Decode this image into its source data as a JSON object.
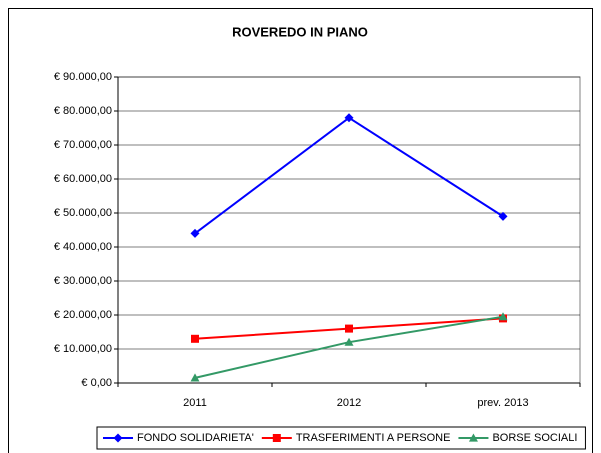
{
  "chart_data": {
    "type": "line",
    "title": "ROVEREDO IN PIANO",
    "categories": [
      "2011",
      "2012",
      "prev. 2013"
    ],
    "series": [
      {
        "name": "FONDO SOLIDARIETA'",
        "color": "#0000ff",
        "marker": "diamond",
        "values": [
          44000,
          78000,
          49000
        ]
      },
      {
        "name": "TRASFERIMENTI A PERSONE",
        "color": "#ff0000",
        "marker": "square",
        "values": [
          13000,
          16000,
          19000
        ]
      },
      {
        "name": "BORSE SOCIALI",
        "color": "#339966",
        "marker": "triangle",
        "values": [
          1500,
          12000,
          19500
        ]
      }
    ],
    "ylim": [
      0,
      90000
    ],
    "yticks": [
      {
        "value": 0,
        "label": "€ 0,00"
      },
      {
        "value": 10000,
        "label": "€ 10.000,00"
      },
      {
        "value": 20000,
        "label": "€ 20.000,00"
      },
      {
        "value": 30000,
        "label": "€ 30.000,00"
      },
      {
        "value": 40000,
        "label": "€ 40.000,00"
      },
      {
        "value": 50000,
        "label": "€ 50.000,00"
      },
      {
        "value": 60000,
        "label": "€ 60.000,00"
      },
      {
        "value": 70000,
        "label": "€ 70.000,00"
      },
      {
        "value": 80000,
        "label": "€ 80.000,00"
      },
      {
        "value": 90000,
        "label": "€ 90.000,00"
      }
    ],
    "grid": true,
    "legend": "bottom"
  }
}
